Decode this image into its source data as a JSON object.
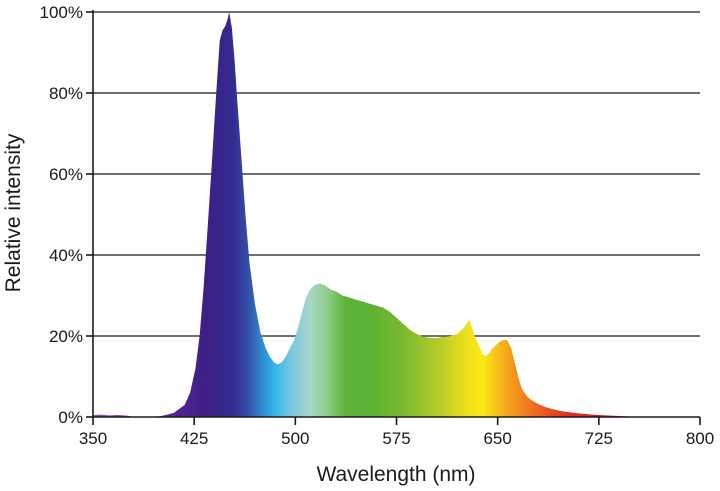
{
  "chart_data": {
    "type": "area",
    "title": "",
    "xlabel": "Wavelength (nm)",
    "ylabel": "Relative intensity",
    "xlim": [
      350,
      800
    ],
    "ylim": [
      0,
      100
    ],
    "x_ticks": [
      350,
      425,
      500,
      575,
      650,
      725,
      800
    ],
    "x_tick_labels": [
      "350",
      "425",
      "500",
      "575",
      "650",
      "725",
      "800"
    ],
    "y_ticks": [
      0,
      20,
      40,
      60,
      80,
      100
    ],
    "y_tick_labels": [
      "0%",
      "20%",
      "40%",
      "60%",
      "80%",
      "100%"
    ],
    "grid": "horizontal",
    "fill": "visible-spectrum gradient",
    "series": [
      {
        "x": [
          350,
          356,
          362,
          368,
          372,
          376,
          380,
          390,
          400,
          410,
          418,
          422,
          426,
          429,
          432,
          435,
          438,
          441,
          443,
          444,
          446,
          448,
          450,
          451,
          453,
          455,
          457,
          460,
          463,
          466,
          470,
          474,
          478,
          481,
          484,
          487,
          490,
          493,
          496,
          499,
          502,
          505,
          508,
          511,
          514,
          518,
          522,
          526,
          530,
          535,
          540,
          545,
          550,
          555,
          560,
          565,
          570,
          575,
          580,
          585,
          590,
          595,
          600,
          605,
          610,
          615,
          620,
          625,
          627,
          629,
          631,
          633,
          635,
          637,
          639,
          641,
          643,
          645,
          648,
          651,
          654,
          657,
          660,
          663,
          666,
          668,
          670,
          672,
          675,
          680,
          685,
          690,
          695,
          700,
          710,
          720,
          730,
          740,
          750,
          752
        ],
        "y": [
          0.5,
          0.6,
          0.4,
          0.5,
          0.4,
          0.3,
          0.05,
          0.05,
          0.2,
          1.0,
          3.0,
          6.0,
          12.0,
          20.0,
          32.0,
          47.0,
          62.0,
          78.0,
          88.0,
          93.0,
          95.5,
          96.5,
          98.5,
          100.0,
          96.0,
          88.0,
          78.0,
          64.0,
          50.0,
          38.0,
          28.0,
          21.0,
          17.0,
          15.0,
          13.5,
          13.0,
          13.5,
          15.0,
          17.0,
          19.0,
          22.0,
          26.0,
          29.5,
          31.5,
          32.5,
          33.0,
          32.5,
          31.5,
          31.0,
          30.0,
          29.5,
          29.0,
          28.5,
          28.0,
          27.5,
          27.0,
          26.0,
          24.5,
          23.0,
          21.5,
          20.5,
          19.8,
          19.5,
          19.5,
          19.8,
          20.0,
          20.5,
          22.0,
          23.0,
          24.0,
          22.0,
          20.0,
          18.5,
          17.0,
          15.5,
          15.0,
          15.5,
          16.5,
          17.5,
          18.5,
          19.0,
          19.0,
          17.0,
          13.0,
          9.0,
          7.0,
          6.0,
          5.0,
          4.2,
          3.2,
          2.5,
          2.0,
          1.6,
          1.3,
          0.9,
          0.6,
          0.4,
          0.25,
          0.1,
          0.0
        ]
      }
    ]
  }
}
